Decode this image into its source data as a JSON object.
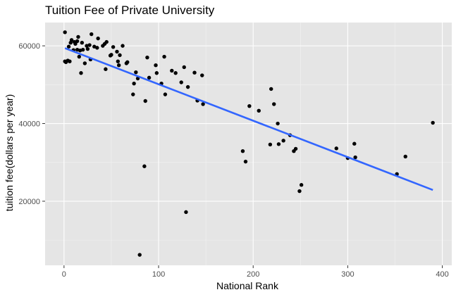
{
  "chart_data": {
    "type": "scatter",
    "title": "Tuition Fee of Private University",
    "xlabel": "National Rank",
    "ylabel": "tuition fee(dollars per year)",
    "xlim": [
      -20,
      410
    ],
    "ylim": [
      3500,
      66000
    ],
    "x_ticks": [
      0,
      100,
      200,
      300,
      400
    ],
    "x_tick_labels": [
      "0",
      "100",
      "200",
      "300",
      "400"
    ],
    "y_ticks": [
      20000,
      40000,
      60000
    ],
    "y_tick_labels": [
      "20000",
      "40000",
      "60000"
    ],
    "grid": true,
    "panel_background": "#e5e5e5",
    "point_color": "#000000",
    "trend_color": "#3366ff",
    "trend_line": {
      "x": [
        1,
        390
      ],
      "y": [
        59400,
        22900
      ]
    },
    "points": [
      {
        "x": 1,
        "y": 63500
      },
      {
        "x": 1,
        "y": 56000
      },
      {
        "x": 2,
        "y": 55800
      },
      {
        "x": 4,
        "y": 56200
      },
      {
        "x": 5,
        "y": 59800
      },
      {
        "x": 6,
        "y": 56000
      },
      {
        "x": 7,
        "y": 60800
      },
      {
        "x": 8,
        "y": 61500
      },
      {
        "x": 10,
        "y": 58900
      },
      {
        "x": 11,
        "y": 61000
      },
      {
        "x": 12,
        "y": 60500
      },
      {
        "x": 14,
        "y": 61200
      },
      {
        "x": 14,
        "y": 59000
      },
      {
        "x": 15,
        "y": 62300
      },
      {
        "x": 16,
        "y": 57200
      },
      {
        "x": 17,
        "y": 58800
      },
      {
        "x": 18,
        "y": 53000
      },
      {
        "x": 19,
        "y": 60800
      },
      {
        "x": 20,
        "y": 59000
      },
      {
        "x": 22,
        "y": 55500
      },
      {
        "x": 24,
        "y": 60000
      },
      {
        "x": 25,
        "y": 59200
      },
      {
        "x": 27,
        "y": 60200
      },
      {
        "x": 28,
        "y": 56500
      },
      {
        "x": 29,
        "y": 63000
      },
      {
        "x": 32,
        "y": 59800
      },
      {
        "x": 35,
        "y": 59500
      },
      {
        "x": 36,
        "y": 61900
      },
      {
        "x": 41,
        "y": 60000
      },
      {
        "x": 43,
        "y": 60500
      },
      {
        "x": 44,
        "y": 54000
      },
      {
        "x": 45,
        "y": 61000
      },
      {
        "x": 49,
        "y": 57500
      },
      {
        "x": 50,
        "y": 57700
      },
      {
        "x": 52,
        "y": 59700
      },
      {
        "x": 56,
        "y": 58500
      },
      {
        "x": 57,
        "y": 56000
      },
      {
        "x": 58,
        "y": 55000
      },
      {
        "x": 59,
        "y": 57600
      },
      {
        "x": 62,
        "y": 60000
      },
      {
        "x": 66,
        "y": 55500
      },
      {
        "x": 67,
        "y": 55800
      },
      {
        "x": 73,
        "y": 47500
      },
      {
        "x": 74,
        "y": 50300
      },
      {
        "x": 76,
        "y": 53200
      },
      {
        "x": 78,
        "y": 51600
      },
      {
        "x": 80,
        "y": 6200
      },
      {
        "x": 85,
        "y": 29000
      },
      {
        "x": 86,
        "y": 45800
      },
      {
        "x": 88,
        "y": 57000
      },
      {
        "x": 90,
        "y": 51800
      },
      {
        "x": 97,
        "y": 55000
      },
      {
        "x": 98,
        "y": 53000
      },
      {
        "x": 103,
        "y": 50300
      },
      {
        "x": 106,
        "y": 57200
      },
      {
        "x": 107,
        "y": 47500
      },
      {
        "x": 114,
        "y": 53600
      },
      {
        "x": 118,
        "y": 53000
      },
      {
        "x": 124,
        "y": 50600
      },
      {
        "x": 127,
        "y": 54500
      },
      {
        "x": 129,
        "y": 17200
      },
      {
        "x": 131,
        "y": 49400
      },
      {
        "x": 138,
        "y": 53100
      },
      {
        "x": 141,
        "y": 45900
      },
      {
        "x": 146,
        "y": 52400
      },
      {
        "x": 147,
        "y": 45000
      },
      {
        "x": 189,
        "y": 32900
      },
      {
        "x": 192,
        "y": 30200
      },
      {
        "x": 196,
        "y": 44500
      },
      {
        "x": 206,
        "y": 43300
      },
      {
        "x": 218,
        "y": 34600
      },
      {
        "x": 219,
        "y": 48900
      },
      {
        "x": 222,
        "y": 45000
      },
      {
        "x": 226,
        "y": 40000
      },
      {
        "x": 227,
        "y": 34700
      },
      {
        "x": 232,
        "y": 35600
      },
      {
        "x": 239,
        "y": 37000
      },
      {
        "x": 243,
        "y": 32900
      },
      {
        "x": 245,
        "y": 33500
      },
      {
        "x": 249,
        "y": 22600
      },
      {
        "x": 251,
        "y": 24200
      },
      {
        "x": 288,
        "y": 33600
      },
      {
        "x": 300,
        "y": 31100
      },
      {
        "x": 307,
        "y": 34800
      },
      {
        "x": 308,
        "y": 31300
      },
      {
        "x": 352,
        "y": 27000
      },
      {
        "x": 361,
        "y": 31500
      },
      {
        "x": 390,
        "y": 40200
      }
    ]
  }
}
